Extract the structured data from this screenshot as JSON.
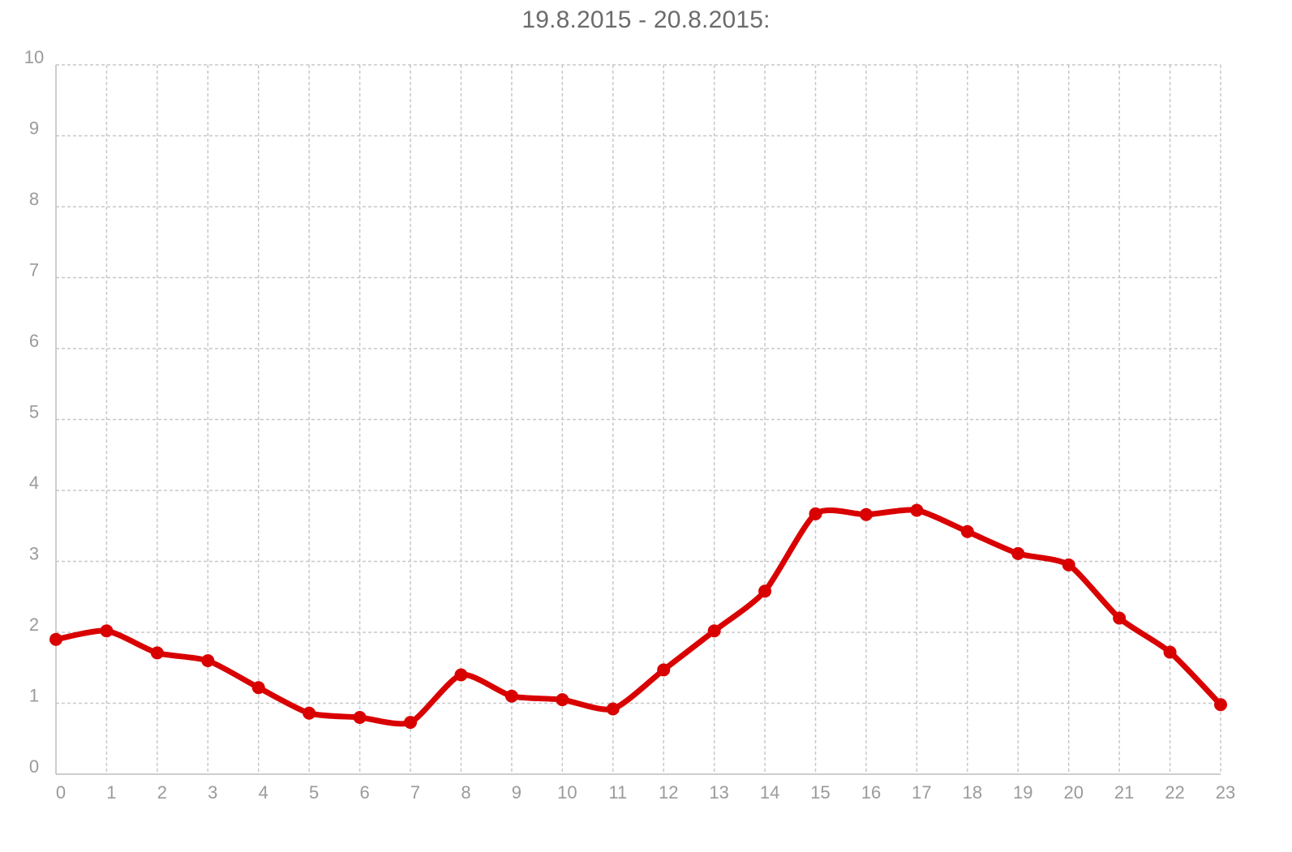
{
  "title": "19.8.2015 - 20.8.2015:",
  "colors": {
    "series": "#d90000",
    "grid": "#c8c8c8",
    "tick_text": "#9a9a9a",
    "title_text": "#6b6b6b"
  },
  "chart_data": {
    "type": "line",
    "title": "19.8.2015 - 20.8.2015:",
    "xlabel": "",
    "ylabel": "",
    "x": [
      0,
      1,
      2,
      3,
      4,
      5,
      6,
      7,
      8,
      9,
      10,
      11,
      12,
      13,
      14,
      15,
      16,
      17,
      18,
      19,
      20,
      21,
      22,
      23
    ],
    "x_tick_labels": [
      "0",
      "1",
      "2",
      "3",
      "4",
      "5",
      "6",
      "7",
      "8",
      "9",
      "10",
      "11",
      "12",
      "13",
      "14",
      "15",
      "16",
      "17",
      "18",
      "19",
      "20",
      "21",
      "22",
      "23"
    ],
    "y_tick_labels": [
      "0",
      "1",
      "2",
      "3",
      "4",
      "5",
      "6",
      "7",
      "8",
      "9",
      "10"
    ],
    "ylim": [
      0,
      10
    ],
    "xlim": [
      0,
      23
    ],
    "grid": true,
    "grid_style": "dashed",
    "smooth": true,
    "markers": true,
    "legend": "none",
    "series": [
      {
        "values": [
          1.9,
          2.02,
          1.71,
          1.6,
          1.22,
          0.86,
          0.8,
          0.73,
          1.4,
          1.1,
          1.05,
          0.92,
          1.47,
          2.02,
          2.58,
          3.67,
          3.66,
          3.72,
          3.42,
          3.11,
          2.95,
          2.2,
          1.72,
          0.98
        ]
      }
    ]
  }
}
